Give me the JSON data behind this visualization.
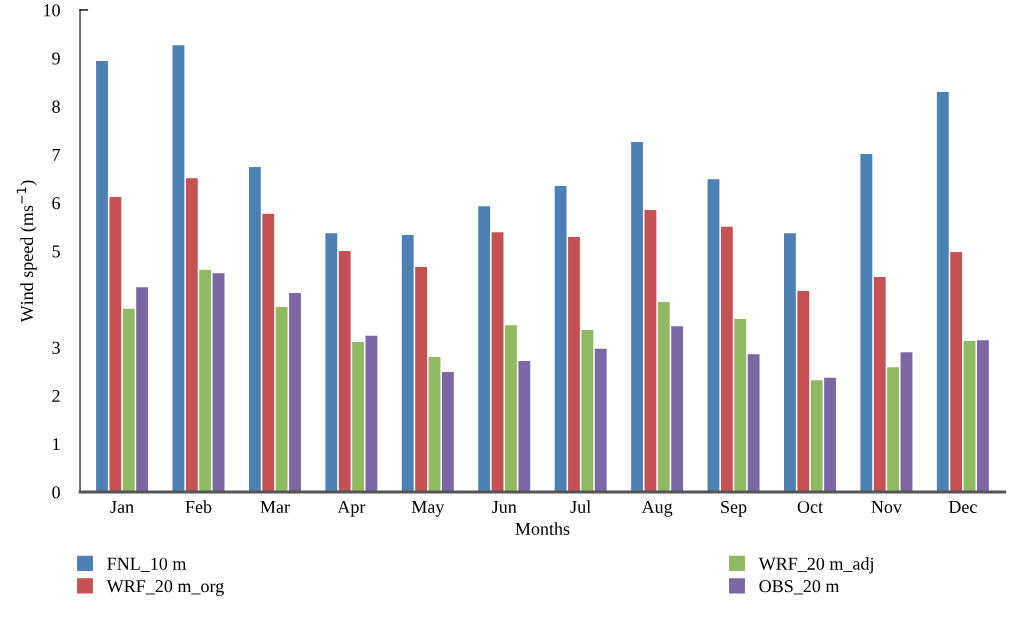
{
  "chart_data": {
    "type": "bar",
    "xlabel": "Months",
    "ylabel": "Wind speed (ms$^{−1}$)",
    "categories": [
      "Jan",
      "Feb",
      "Mar",
      "Apr",
      "May",
      "Jun",
      "Jul",
      "Aug",
      "Sep",
      "Oct",
      "Nov",
      "Dec"
    ],
    "series": [
      {
        "name": "FNL_10 m",
        "color": "#4d80b3",
        "values": [
          8.94,
          9.27,
          6.74,
          5.37,
          5.33,
          5.93,
          6.35,
          7.26,
          6.49,
          5.37,
          7.01,
          8.3
        ]
      },
      {
        "name": "WRF_20 m_org",
        "color": "#c45255",
        "values": [
          6.12,
          6.51,
          5.77,
          5.0,
          4.67,
          5.39,
          5.29,
          5.85,
          5.5,
          4.17,
          4.46,
          4.98
        ]
      },
      {
        "name": "WRF_20 m_adj",
        "color": "#90b963",
        "values": [
          3.8,
          4.61,
          3.84,
          3.11,
          2.8,
          3.46,
          3.36,
          3.94,
          3.59,
          2.32,
          2.59,
          3.13
        ]
      },
      {
        "name": "OBS_20 m",
        "color": "#7b67a4",
        "values": [
          4.25,
          4.54,
          4.13,
          3.24,
          2.49,
          2.72,
          2.97,
          3.44,
          2.86,
          2.37,
          2.9,
          3.15
        ]
      }
    ],
    "ylim": [
      0,
      10
    ],
    "yticks": [
      0,
      1,
      2,
      3,
      5,
      6,
      7,
      8,
      9,
      10
    ],
    "grid": false,
    "legend": "bottom"
  }
}
